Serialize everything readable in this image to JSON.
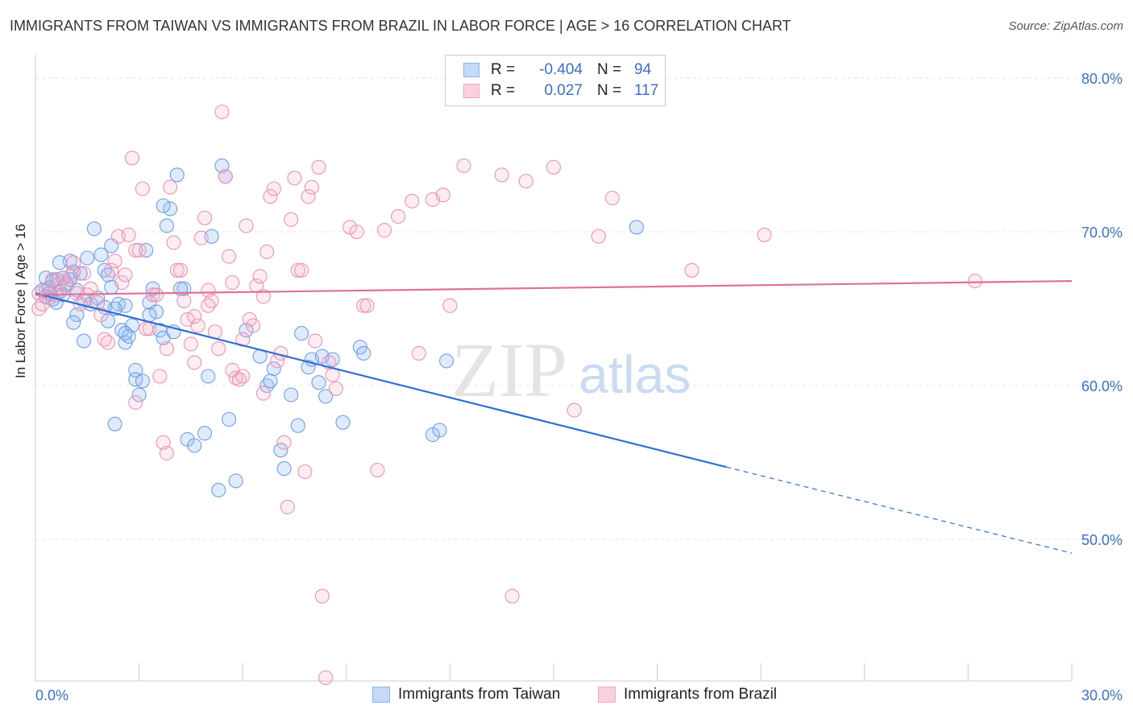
{
  "title": "IMMIGRANTS FROM TAIWAN VS IMMIGRANTS FROM BRAZIL IN LABOR FORCE | AGE > 16 CORRELATION CHART",
  "source": "Source: ZipAtlas.com",
  "watermark": {
    "zip": "ZIP",
    "atlas": "atlas"
  },
  "stats": {
    "r_label": "R =",
    "n_label": "N =",
    "rows": [
      {
        "r": "-0.404",
        "n": "94",
        "color": "#8ab4f0"
      },
      {
        "r": "0.027",
        "n": "117",
        "color": "#f2a7c0"
      }
    ]
  },
  "legend": [
    {
      "label": "Immigrants from Taiwan",
      "color": "#8ab4f0"
    },
    {
      "label": "Immigrants from Brazil",
      "color": "#f2a7c0"
    }
  ],
  "colors": {
    "taiwan": "#2f6fd0",
    "brazil": "#e0709a",
    "tick_label": "#3a6fd0",
    "grid": "#e3e3e3"
  },
  "chart_data": {
    "type": "scatter",
    "title": "IMMIGRANTS FROM TAIWAN VS IMMIGRANTS FROM BRAZIL IN LABOR FORCE | AGE > 16 CORRELATION CHART",
    "xlabel": "",
    "ylabel": "In Labor Force | Age > 16",
    "xlim": [
      0,
      30
    ],
    "ylim": [
      40.5,
      80.8
    ],
    "x_tick_labels": [
      {
        "value": 0,
        "label": "0.0%"
      },
      {
        "value": 30,
        "label": "30.0%"
      }
    ],
    "y_tick_labels": [
      {
        "value": 80,
        "label": "80.0%"
      },
      {
        "value": 70,
        "label": "70.0%"
      },
      {
        "value": 60,
        "label": "60.0%"
      },
      {
        "value": 50,
        "label": "50.0%"
      }
    ],
    "grid": true,
    "legend_position": "bottom",
    "series": [
      {
        "name": "Immigrants from Taiwan",
        "color": "#8ab4f0",
        "trend": {
          "x": [
            0,
            20
          ],
          "y": [
            66.0,
            54.7
          ],
          "dashed_to": [
            30,
            49.1
          ]
        },
        "points": [
          [
            0.2,
            66.2
          ],
          [
            0.3,
            65.8
          ],
          [
            0.4,
            66.4
          ],
          [
            0.5,
            65.6
          ],
          [
            0.6,
            66.9
          ],
          [
            0.7,
            66.1
          ],
          [
            0.6,
            65.4
          ],
          [
            0.8,
            67.0
          ],
          [
            0.9,
            66.6
          ],
          [
            1.0,
            68.1
          ],
          [
            0.5,
            66.8
          ],
          [
            0.8,
            65.9
          ],
          [
            1.1,
            67.4
          ],
          [
            1.2,
            66.2
          ],
          [
            1.4,
            65.5
          ],
          [
            1.2,
            64.6
          ],
          [
            1.1,
            64.1
          ],
          [
            1.4,
            62.9
          ],
          [
            1.7,
            70.2
          ],
          [
            1.9,
            68.5
          ],
          [
            2.0,
            67.5
          ],
          [
            1.5,
            68.3
          ],
          [
            2.1,
            67.2
          ],
          [
            2.2,
            66.4
          ],
          [
            2.4,
            65.3
          ],
          [
            2.6,
            65.2
          ],
          [
            2.3,
            65.0
          ],
          [
            2.1,
            64.2
          ],
          [
            2.5,
            63.6
          ],
          [
            2.6,
            62.8
          ],
          [
            2.8,
            63.9
          ],
          [
            2.7,
            63.2
          ],
          [
            2.9,
            61.0
          ],
          [
            2.9,
            60.4
          ],
          [
            3.1,
            60.3
          ],
          [
            3.0,
            59.4
          ],
          [
            2.3,
            57.5
          ],
          [
            3.3,
            65.4
          ],
          [
            3.4,
            66.3
          ],
          [
            3.5,
            64.8
          ],
          [
            3.6,
            63.6
          ],
          [
            3.7,
            63.1
          ],
          [
            3.8,
            70.4
          ],
          [
            3.9,
            71.5
          ],
          [
            4.1,
            73.7
          ],
          [
            4.3,
            66.3
          ],
          [
            3.2,
            68.8
          ],
          [
            4.4,
            56.5
          ],
          [
            4.6,
            56.1
          ],
          [
            4.9,
            56.9
          ],
          [
            5.0,
            60.6
          ],
          [
            5.1,
            69.7
          ],
          [
            5.4,
            74.3
          ],
          [
            5.5,
            73.6
          ],
          [
            5.6,
            57.8
          ],
          [
            5.3,
            53.2
          ],
          [
            5.8,
            53.8
          ],
          [
            6.1,
            63.6
          ],
          [
            6.5,
            61.9
          ],
          [
            6.7,
            60.0
          ],
          [
            6.8,
            60.3
          ],
          [
            6.9,
            61.1
          ],
          [
            7.1,
            55.8
          ],
          [
            7.2,
            54.6
          ],
          [
            7.4,
            59.4
          ],
          [
            7.6,
            57.4
          ],
          [
            7.7,
            63.4
          ],
          [
            7.9,
            61.2
          ],
          [
            8.0,
            61.7
          ],
          [
            8.2,
            60.2
          ],
          [
            8.3,
            61.9
          ],
          [
            8.4,
            59.3
          ],
          [
            8.6,
            61.7
          ],
          [
            8.9,
            57.6
          ],
          [
            9.4,
            62.5
          ],
          [
            9.5,
            62.1
          ],
          [
            11.5,
            56.8
          ],
          [
            11.7,
            57.1
          ],
          [
            11.9,
            61.6
          ],
          [
            17.4,
            70.3
          ],
          [
            0.3,
            67.0
          ],
          [
            0.4,
            66.0
          ],
          [
            0.7,
            68.0
          ],
          [
            1.0,
            66.9
          ],
          [
            1.3,
            67.3
          ],
          [
            1.6,
            65.3
          ],
          [
            1.8,
            65.7
          ],
          [
            2.0,
            65.1
          ],
          [
            2.2,
            69.1
          ],
          [
            3.7,
            71.7
          ],
          [
            4.0,
            63.5
          ],
          [
            3.3,
            64.6
          ],
          [
            4.2,
            66.3
          ],
          [
            2.6,
            63.4
          ]
        ]
      },
      {
        "name": "Immigrants from Brazil",
        "color": "#f2a7c0",
        "trend": {
          "x": [
            0,
            30
          ],
          "y": [
            65.9,
            66.8
          ]
        },
        "points": [
          [
            0.1,
            66.0
          ],
          [
            0.1,
            65.0
          ],
          [
            0.3,
            66.2
          ],
          [
            0.4,
            65.7
          ],
          [
            0.5,
            66.9
          ],
          [
            0.6,
            65.9
          ],
          [
            0.7,
            66.6
          ],
          [
            0.9,
            66.5
          ],
          [
            1.0,
            67.1
          ],
          [
            1.2,
            66.0
          ],
          [
            1.3,
            65.3
          ],
          [
            1.4,
            67.3
          ],
          [
            1.6,
            66.3
          ],
          [
            1.8,
            65.4
          ],
          [
            1.9,
            64.6
          ],
          [
            2.0,
            63.0
          ],
          [
            2.1,
            62.8
          ],
          [
            2.2,
            67.5
          ],
          [
            2.3,
            68.1
          ],
          [
            2.4,
            69.7
          ],
          [
            2.5,
            66.7
          ],
          [
            2.6,
            67.2
          ],
          [
            2.7,
            69.8
          ],
          [
            2.8,
            74.8
          ],
          [
            2.9,
            68.8
          ],
          [
            3.0,
            68.8
          ],
          [
            3.1,
            72.8
          ],
          [
            3.2,
            63.7
          ],
          [
            3.3,
            63.7
          ],
          [
            3.4,
            65.9
          ],
          [
            3.5,
            65.9
          ],
          [
            3.6,
            60.6
          ],
          [
            3.7,
            56.3
          ],
          [
            3.8,
            55.6
          ],
          [
            3.9,
            72.9
          ],
          [
            4.0,
            69.3
          ],
          [
            4.1,
            67.5
          ],
          [
            4.2,
            67.5
          ],
          [
            4.3,
            65.5
          ],
          [
            4.4,
            64.3
          ],
          [
            4.5,
            62.7
          ],
          [
            4.6,
            61.5
          ],
          [
            4.7,
            63.9
          ],
          [
            4.8,
            69.6
          ],
          [
            4.9,
            70.9
          ],
          [
            5.0,
            66.2
          ],
          [
            5.1,
            65.5
          ],
          [
            5.2,
            63.5
          ],
          [
            5.3,
            62.4
          ],
          [
            5.4,
            77.8
          ],
          [
            5.5,
            73.6
          ],
          [
            5.6,
            68.4
          ],
          [
            5.7,
            66.7
          ],
          [
            5.8,
            60.5
          ],
          [
            5.9,
            60.4
          ],
          [
            6.0,
            60.6
          ],
          [
            6.1,
            70.4
          ],
          [
            6.2,
            64.3
          ],
          [
            6.3,
            63.9
          ],
          [
            6.4,
            66.5
          ],
          [
            6.5,
            67.1
          ],
          [
            6.6,
            65.8
          ],
          [
            6.7,
            68.7
          ],
          [
            6.8,
            72.3
          ],
          [
            6.9,
            72.8
          ],
          [
            7.0,
            61.6
          ],
          [
            7.1,
            62.1
          ],
          [
            7.2,
            56.3
          ],
          [
            7.3,
            52.1
          ],
          [
            7.4,
            70.8
          ],
          [
            7.5,
            73.5
          ],
          [
            7.6,
            67.5
          ],
          [
            7.7,
            67.5
          ],
          [
            7.8,
            54.4
          ],
          [
            7.9,
            72.3
          ],
          [
            8.0,
            72.9
          ],
          [
            8.1,
            62.9
          ],
          [
            8.2,
            74.2
          ],
          [
            8.3,
            46.3
          ],
          [
            8.4,
            41.0
          ],
          [
            8.5,
            61.5
          ],
          [
            8.6,
            60.7
          ],
          [
            8.7,
            59.8
          ],
          [
            9.1,
            70.3
          ],
          [
            9.3,
            70.0
          ],
          [
            9.5,
            65.2
          ],
          [
            9.6,
            65.2
          ],
          [
            9.9,
            54.5
          ],
          [
            10.1,
            70.1
          ],
          [
            10.5,
            71.0
          ],
          [
            10.9,
            72.0
          ],
          [
            11.1,
            62.1
          ],
          [
            11.5,
            72.1
          ],
          [
            11.8,
            72.4
          ],
          [
            12.0,
            65.2
          ],
          [
            12.4,
            74.3
          ],
          [
            13.5,
            73.7
          ],
          [
            13.8,
            46.3
          ],
          [
            14.2,
            73.3
          ],
          [
            15.0,
            74.2
          ],
          [
            15.6,
            58.4
          ],
          [
            16.3,
            69.7
          ],
          [
            16.7,
            72.2
          ],
          [
            19.0,
            67.5
          ],
          [
            21.1,
            69.8
          ],
          [
            27.2,
            66.8
          ],
          [
            0.2,
            65.3
          ],
          [
            0.8,
            67.0
          ],
          [
            1.1,
            68.0
          ],
          [
            1.5,
            65.9
          ],
          [
            2.9,
            58.9
          ],
          [
            3.8,
            62.4
          ],
          [
            4.6,
            64.5
          ],
          [
            5.0,
            65.2
          ],
          [
            5.7,
            61.0
          ],
          [
            6.0,
            63.0
          ],
          [
            6.6,
            59.5
          ]
        ]
      }
    ]
  }
}
